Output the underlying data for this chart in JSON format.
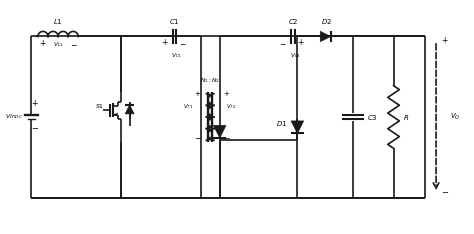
{
  "bg_color": "#ffffff",
  "line_color": "#1a1a1a",
  "line_width": 1.2,
  "figsize": [
    4.74,
    2.34
  ],
  "dpi": 100,
  "xlim": [
    0,
    100
  ],
  "ylim": [
    0,
    52
  ]
}
